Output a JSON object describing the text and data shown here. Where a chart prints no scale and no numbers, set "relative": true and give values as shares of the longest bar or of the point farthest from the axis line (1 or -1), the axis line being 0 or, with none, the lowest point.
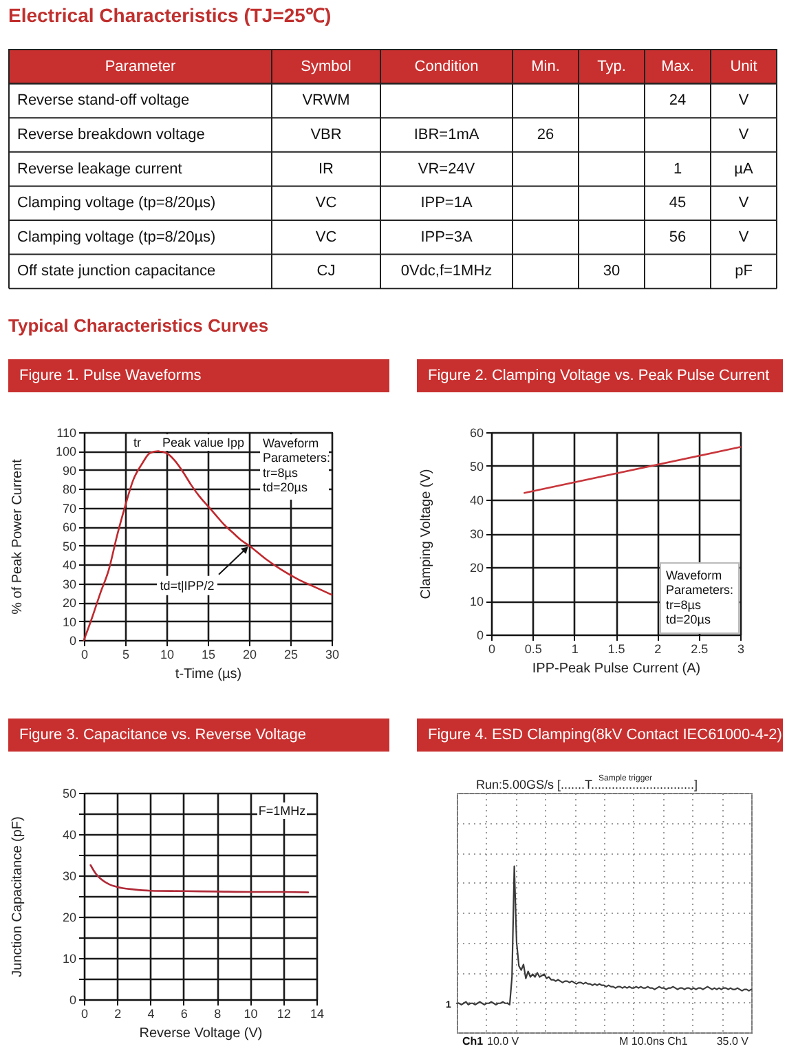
{
  "chart_data": [
    {
      "type": "other",
      "title": "Electrical Characteristics (TJ=25℃)",
      "categories": [
        "Parameter",
        "Symbol",
        "Condition",
        "Min.",
        "Typ.",
        "Max.",
        "Unit"
      ],
      "cell_labels": [
        [
          "Reverse stand-off voltage",
          "VRWM",
          null,
          null,
          null,
          "24",
          "V"
        ],
        [
          "Reverse breakdown voltage",
          "VBR",
          "IBR=1mA",
          "26",
          null,
          null,
          "V"
        ],
        [
          "Reverse leakage current",
          "IR",
          "VR=24V",
          null,
          null,
          "1",
          "µA"
        ],
        [
          "Clamping voltage (tp=8/20µs)",
          "VC",
          "IPP=1A",
          null,
          null,
          "45",
          "V"
        ],
        [
          "Clamping voltage (tp=8/20µs)",
          "VC",
          "IPP=3A",
          null,
          null,
          "56",
          "V"
        ],
        [
          "Off state junction capacitance",
          "CJ",
          "0Vdc,f=1MHz",
          null,
          "30",
          null,
          "pF"
        ]
      ],
      "annotations": [
        "Typical Characteristics Curves"
      ]
    },
    {
      "type": "line",
      "title": "Figure 1. Pulse Waveforms",
      "xlabel": "t-Time (µs)",
      "ylabel": "% of Peak Power Current",
      "x": [
        0,
        1,
        2,
        3,
        4,
        5,
        6,
        7,
        8,
        9,
        10,
        11,
        12,
        13,
        14,
        15,
        16,
        17,
        18,
        19,
        20,
        22,
        24,
        26,
        28,
        30
      ],
      "values": [
        0,
        12,
        25,
        37,
        55,
        71,
        85,
        93,
        99,
        100,
        99,
        95,
        89,
        82,
        76,
        71,
        66,
        61,
        57,
        53,
        50,
        43,
        37,
        32,
        28,
        24
      ],
      "color": "#c0282d",
      "xlim": [
        0,
        30
      ],
      "xticks": [
        0,
        5,
        10,
        15,
        20,
        25,
        30
      ],
      "ylim": [
        0,
        110
      ],
      "yticks": [
        0,
        10,
        20,
        30,
        40,
        50,
        60,
        70,
        80,
        90,
        100,
        110
      ],
      "grid": true,
      "annotations": [
        "tr",
        "Peak value Ipp",
        "Waveform\nParameters:\ntr=8µs\ntd=20µs",
        {
          "text": "td=t|IPP/2",
          "x": 20,
          "y": 50
        }
      ]
    },
    {
      "type": "line",
      "title": "Figure 2. Clamping Voltage vs. Peak Pulse Current",
      "xlabel": "IPP-Peak Pulse Current (A)",
      "ylabel": "Clamping Voltage (V)",
      "x": [
        0.4,
        3
      ],
      "values": [
        42,
        55.6
      ],
      "color": "#c8373c",
      "xlim": [
        0,
        3
      ],
      "xticks": [
        0,
        0.5,
        1,
        1.5,
        2,
        2.5,
        3
      ],
      "ylim": [
        0,
        60
      ],
      "yticks": [
        0,
        10,
        20,
        30,
        40,
        50,
        60
      ],
      "grid": true,
      "annotations": [
        "Waveform\nParameters:\ntr=8µs\ntd=20µs"
      ]
    },
    {
      "type": "line",
      "title": "Figure 3. Capacitance vs. Reverse Voltage",
      "xlabel": "Reverse Voltage (V)",
      "ylabel": "Junction Capacitance (pF)",
      "x": [
        0.4,
        0.7,
        1,
        1.5,
        2,
        3,
        4,
        6,
        8,
        10,
        12,
        13.5
      ],
      "values": [
        32.5,
        30.5,
        29.2,
        27.9,
        27.2,
        26.6,
        26.3,
        26.2,
        26.1,
        26,
        26,
        25.9
      ],
      "color": "#b02a38",
      "xlim": [
        0,
        14
      ],
      "xticks": [
        0,
        2,
        4,
        6,
        8,
        10,
        12,
        14
      ],
      "ylim": [
        0,
        50
      ],
      "yticks": [
        0,
        {
          "value": 5,
          "label": null
        },
        10,
        {
          "value": 15,
          "label": null
        },
        20,
        {
          "value": 25,
          "label": null
        },
        30,
        {
          "value": 35,
          "label": null
        },
        40,
        {
          "value": 45,
          "label": null
        },
        50
      ],
      "grid": true,
      "annotations": [
        "F=1MHz"
      ]
    },
    {
      "type": "line",
      "title": "Figure 4. ESD Clamping(8kV Contact IEC61000-4-2)",
      "relative": true,
      "categories": [
        null,
        null,
        null,
        null,
        null,
        null,
        null,
        null,
        null,
        null,
        null,
        null,
        null,
        null,
        null,
        null,
        null,
        null,
        null,
        null,
        null,
        null,
        null,
        null,
        null,
        null,
        null,
        null,
        null,
        null,
        null,
        null,
        null,
        null,
        null,
        null,
        null,
        null,
        null,
        null,
        null,
        null,
        null,
        null,
        null,
        null,
        null,
        null,
        null,
        null,
        null,
        null,
        null,
        null,
        null,
        null,
        null,
        null,
        null,
        null,
        null,
        null,
        null,
        null,
        null,
        null,
        null,
        null,
        null,
        null,
        null,
        null,
        null,
        null,
        null,
        null,
        null,
        null,
        null,
        null,
        null,
        null,
        null,
        null,
        null,
        null,
        null,
        null,
        null,
        null,
        null,
        null,
        null,
        null,
        null,
        null,
        null,
        null,
        null,
        null,
        null,
        null,
        null,
        null,
        null,
        null,
        null,
        null,
        null,
        null,
        null,
        null,
        null,
        null,
        null,
        null,
        null,
        null,
        null,
        null,
        null,
        null,
        null,
        null,
        null,
        null,
        null,
        null,
        null
      ],
      "values": [
        0.01,
        0.01,
        0,
        0.01,
        0.02,
        0,
        0.01,
        0.01,
        0,
        0.01,
        0.02,
        0.01,
        0,
        0.01,
        0.01,
        0.02,
        0.01,
        0,
        0.01,
        0.01,
        0.02,
        0.01,
        0.01,
        0,
        0.2,
        1,
        0.45,
        0.28,
        0.25,
        0.29,
        0.19,
        0.24,
        0.2,
        0.22,
        0.2,
        0.23,
        0.2,
        0.21,
        0.22,
        0.19,
        0.2,
        0.18,
        0.18,
        0.17,
        0.18,
        0.17,
        0.16,
        0.17,
        0.17,
        0.16,
        0.17,
        0.16,
        0.15,
        0.16,
        0.16,
        0.15,
        0.16,
        0.15,
        0.15,
        0.14,
        0.15,
        0.14,
        0.15,
        0.14,
        0.14,
        0.13,
        0.14,
        0.13,
        0.13,
        0.12,
        0.13,
        0.13,
        0.12,
        0.13,
        0.12,
        0.13,
        0.12,
        0.12,
        0.13,
        0.12,
        0.13,
        0.12,
        0.12,
        0.13,
        0.12,
        0.12,
        0.11,
        0.12,
        0.13,
        0.12,
        0.12,
        0.11,
        0.12,
        0.12,
        0.13,
        0.12,
        0.11,
        0.12,
        0.12,
        0.11,
        0.12,
        0.12,
        0.11,
        0.12,
        0.11,
        0.12,
        0.12,
        0.11,
        0.12,
        0.13,
        0.12,
        0.11,
        0.12,
        0.11,
        0.12,
        0.11,
        0.12,
        0.12,
        0.11,
        0.12,
        0.11,
        0.11,
        0.12,
        0.11,
        0.1,
        0.11,
        0.11,
        0.1,
        0.11
      ],
      "color": "#3a3a3a",
      "grid": true,
      "annotations": [
        "Run:5.00GS/s  [.......T..............................]",
        "Sample trigger",
        "Ch1",
        "10.0 V",
        "M 10.0ns Ch1",
        "35.0 V",
        "1"
      ]
    }
  ]
}
